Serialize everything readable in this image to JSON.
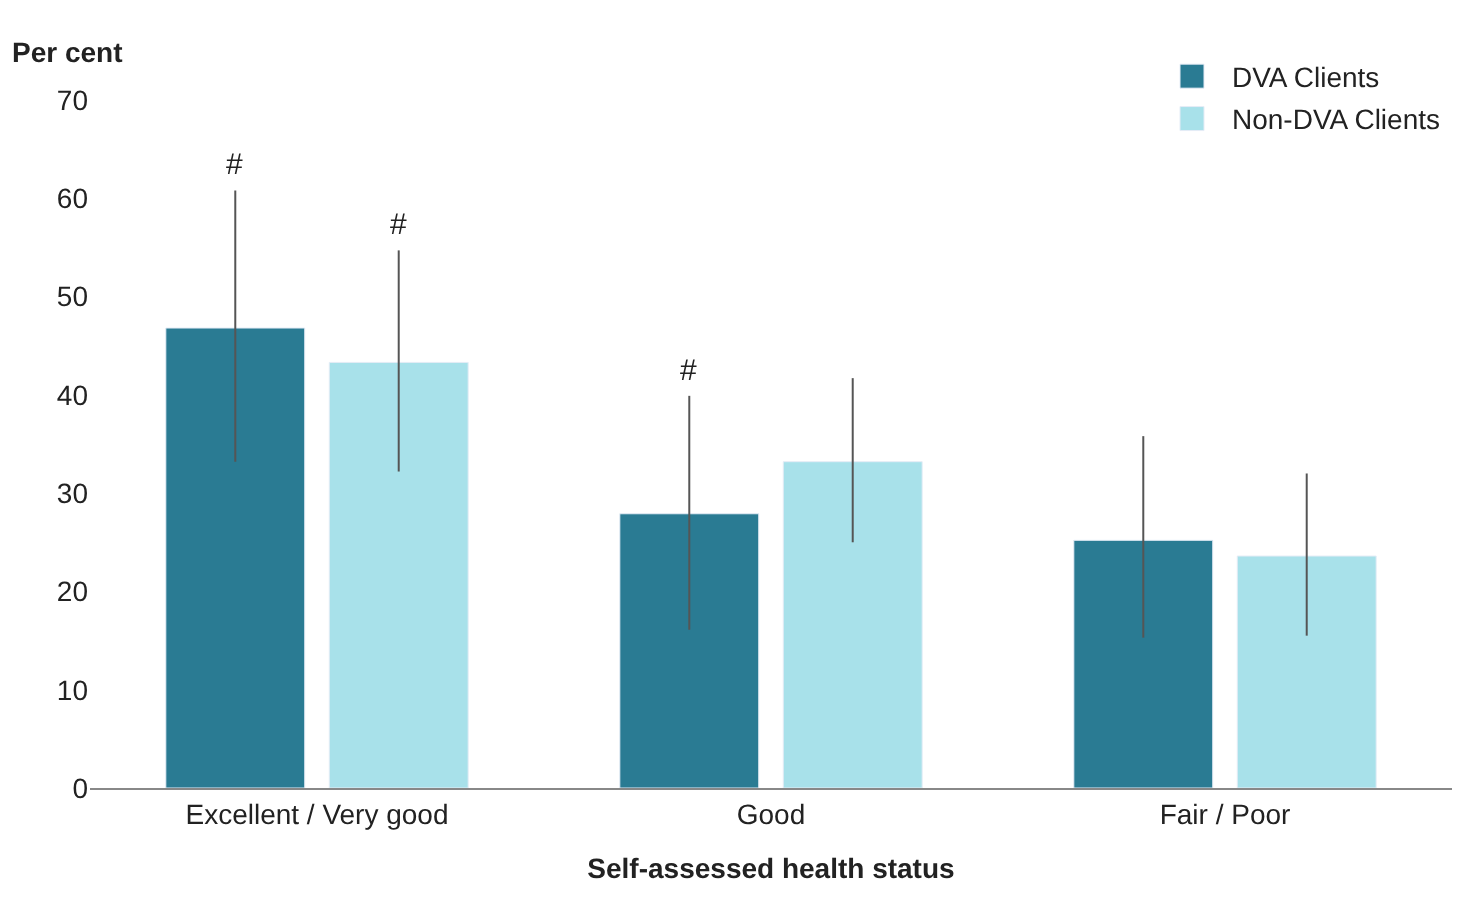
{
  "chart_data": {
    "type": "bar",
    "xlabel": "Self-assessed health status",
    "ylabel": "Per cent",
    "categories": [
      "Excellent / Very good",
      "Good",
      "Fair / Poor"
    ],
    "series": [
      {
        "name": "DVA Clients",
        "color": "#2a7b93",
        "values": [
          46.8,
          27.9,
          25.2
        ],
        "errors": [
          [
            33.2,
            60.8
          ],
          [
            16.1,
            39.9
          ],
          [
            15.3,
            35.8
          ]
        ]
      },
      {
        "name": "Non-DVA Clients",
        "color": "#a8e1ea",
        "values": [
          43.3,
          33.2,
          23.6
        ],
        "errors": [
          [
            32.2,
            54.7
          ],
          [
            25.0,
            41.7
          ],
          [
            15.5,
            32.0
          ]
        ]
      }
    ],
    "ylim": [
      0,
      70
    ],
    "yticks": [
      0,
      10,
      20,
      30,
      40,
      50,
      60,
      70
    ],
    "legend": "top right",
    "annotations": [
      "#",
      "#",
      "#"
    ]
  }
}
